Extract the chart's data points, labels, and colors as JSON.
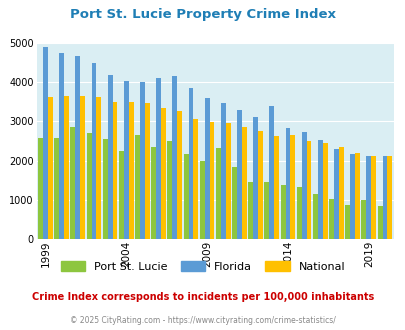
{
  "title": "Port St. Lucie Property Crime Index",
  "years": [
    1999,
    2000,
    2001,
    2002,
    2003,
    2004,
    2005,
    2006,
    2007,
    2008,
    2009,
    2010,
    2011,
    2012,
    2013,
    2014,
    2015,
    2016,
    2017,
    2018,
    2019,
    2020
  ],
  "psl": [
    2570,
    2590,
    2870,
    2700,
    2550,
    2250,
    2650,
    2350,
    2500,
    2170,
    2000,
    2330,
    1840,
    1460,
    1460,
    1370,
    1340,
    1150,
    1020,
    880,
    1000,
    850
  ],
  "florida": [
    4900,
    4750,
    4660,
    4490,
    4170,
    4040,
    4010,
    4110,
    4160,
    3840,
    3590,
    3480,
    3280,
    3120,
    3400,
    2840,
    2720,
    2530,
    2290,
    2160,
    2130,
    2130
  ],
  "national": [
    3620,
    3640,
    3640,
    3610,
    3500,
    3490,
    3480,
    3340,
    3260,
    3060,
    2980,
    2950,
    2870,
    2760,
    2640,
    2650,
    2490,
    2440,
    2360,
    2200,
    2120,
    2110
  ],
  "psl_color": "#8dc63f",
  "florida_color": "#5b9bd5",
  "national_color": "#ffc000",
  "bg_color": "#daeef3",
  "ylim": [
    0,
    5000
  ],
  "yticks": [
    0,
    1000,
    2000,
    3000,
    4000,
    5000
  ],
  "subtitle": "Crime Index corresponds to incidents per 100,000 inhabitants",
  "footer": "© 2025 CityRating.com - https://www.cityrating.com/crime-statistics/",
  "title_color": "#1f7eb5",
  "subtitle_color": "#cc0000",
  "footer_color": "#888888",
  "tick_years": [
    1999,
    2004,
    2009,
    2014,
    2019
  ],
  "legend_labels": [
    "Port St. Lucie",
    "Florida",
    "National"
  ]
}
